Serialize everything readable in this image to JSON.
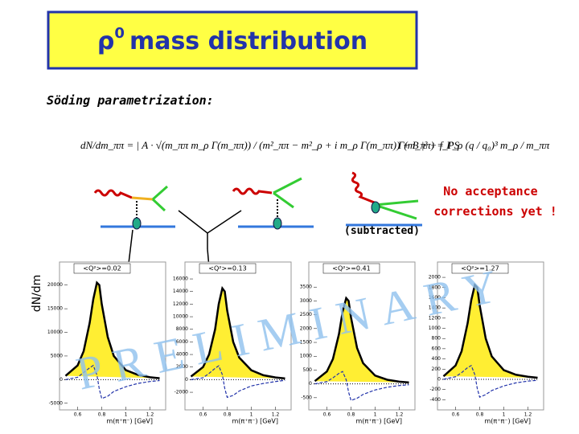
{
  "slide": {
    "title_symbol": "ρ",
    "title_sup": "0",
    "title_text": "mass distribution",
    "subtitle": "Söding parametrization:",
    "formula_main": "dN/dm_ππ = | A · √(m_ππ m_ρ Γ(m_ππ)) / (m²_ππ − m²_ρ + i m_ρ Γ(m_ππ)) + B |² + f_PS",
    "formula_width": "Γ(m_ππ) = Γ_ρ (q / q₀)³ m_ρ / m_ππ",
    "note_line1": "No acceptance",
    "note_line2": "corrections yet !",
    "subtracted": "(subtracted)",
    "y_label": "dN/dm",
    "watermark": "PRELIMINARY"
  },
  "chart_data": [
    {
      "type": "line",
      "title": "<Q²>=0.02",
      "xlabel": "m(π⁺π⁻) [GeV]",
      "x": [
        0.5,
        0.6,
        0.65,
        0.7,
        0.73,
        0.76,
        0.78,
        0.8,
        0.85,
        0.9,
        1.0,
        1.1,
        1.2,
        1.28
      ],
      "series": [
        {
          "color": "#000000",
          "fill": "#ffee33",
          "values": [
            800,
            3000,
            6000,
            12000,
            17000,
            20500,
            20000,
            16000,
            9000,
            5000,
            2000,
            1000,
            500,
            300
          ]
        },
        {
          "color": "#2233aa",
          "dashed": true,
          "values": [
            0,
            500,
            1500,
            2500,
            3000,
            1000,
            -2000,
            -4000,
            -3500,
            -2500,
            -1500,
            -800,
            -400,
            -200
          ]
        }
      ],
      "xlim": [
        0.49,
        1.29
      ],
      "xticks": [
        0.6,
        0.8,
        1,
        1.2
      ],
      "ylim": [
        -6400,
        22500
      ],
      "yticks": [
        20000,
        15000,
        10000,
        5000,
        0,
        -5000
      ]
    },
    {
      "type": "line",
      "title": "<Q²>=0.13",
      "xlabel": "m(π⁺π⁻) [GeV]",
      "x": [
        0.5,
        0.6,
        0.65,
        0.7,
        0.73,
        0.76,
        0.78,
        0.8,
        0.85,
        0.9,
        1.0,
        1.1,
        1.2,
        1.28
      ],
      "series": [
        {
          "color": "#000000",
          "fill": "#ffee33",
          "values": [
            500,
            2000,
            4000,
            8000,
            12000,
            14500,
            14000,
            11000,
            6000,
            3500,
            1500,
            700,
            350,
            200
          ]
        },
        {
          "color": "#2233aa",
          "dashed": true,
          "values": [
            0,
            300,
            1000,
            1800,
            2200,
            800,
            -1400,
            -2800,
            -2500,
            -1800,
            -1000,
            -600,
            -300,
            -100
          ]
        }
      ],
      "xlim": [
        0.49,
        1.29
      ],
      "xticks": [
        0.6,
        0.8,
        1,
        1.2
      ],
      "ylim": [
        -4800,
        16900
      ],
      "yticks": [
        16000,
        14000,
        12000,
        10000,
        8000,
        6000,
        4000,
        2000,
        0,
        -2000
      ]
    },
    {
      "type": "line",
      "title": "<Q²>=0.41",
      "xlabel": "m(π⁺π⁻) [GeV]",
      "x": [
        0.5,
        0.6,
        0.65,
        0.7,
        0.73,
        0.76,
        0.78,
        0.8,
        0.85,
        0.9,
        1.0,
        1.1,
        1.2,
        1.28
      ],
      "series": [
        {
          "color": "#000000",
          "fill": "#ffee33",
          "values": [
            100,
            450,
            900,
            1800,
            2600,
            3100,
            3000,
            2400,
            1300,
            750,
            300,
            150,
            80,
            50
          ]
        },
        {
          "color": "#2233aa",
          "dashed": true,
          "values": [
            0,
            80,
            220,
            380,
            450,
            150,
            -300,
            -600,
            -520,
            -380,
            -220,
            -120,
            -60,
            -30
          ]
        }
      ],
      "xlim": [
        0.49,
        1.29
      ],
      "xticks": [
        0.6,
        0.8,
        1,
        1.2
      ],
      "ylim": [
        -940,
        4000
      ],
      "yticks": [
        3500,
        3000,
        2500,
        2000,
        1500,
        1000,
        500,
        0,
        -500
      ]
    },
    {
      "type": "line",
      "title": "<Q²>=1.27",
      "xlabel": "m(π⁺π⁻) [GeV]",
      "x": [
        0.5,
        0.6,
        0.65,
        0.7,
        0.73,
        0.76,
        0.78,
        0.8,
        0.85,
        0.9,
        1.0,
        1.1,
        1.2,
        1.28
      ],
      "series": [
        {
          "color": "#000000",
          "fill": "#ffee33",
          "values": [
            60,
            270,
            550,
            1100,
            1550,
            1850,
            1800,
            1450,
            800,
            450,
            180,
            90,
            50,
            30
          ]
        },
        {
          "color": "#2233aa",
          "dashed": true,
          "values": [
            0,
            50,
            130,
            230,
            270,
            90,
            -180,
            -350,
            -300,
            -220,
            -130,
            -70,
            -35,
            -20
          ]
        }
      ],
      "xlim": [
        0.49,
        1.29
      ],
      "xticks": [
        0.6,
        0.8,
        1,
        1.2
      ],
      "ylim": [
        -600,
        2080
      ],
      "yticks": [
        2000,
        1800,
        1600,
        1400,
        1200,
        1000,
        800,
        600,
        400,
        200,
        0,
        -200,
        -400
      ]
    }
  ]
}
